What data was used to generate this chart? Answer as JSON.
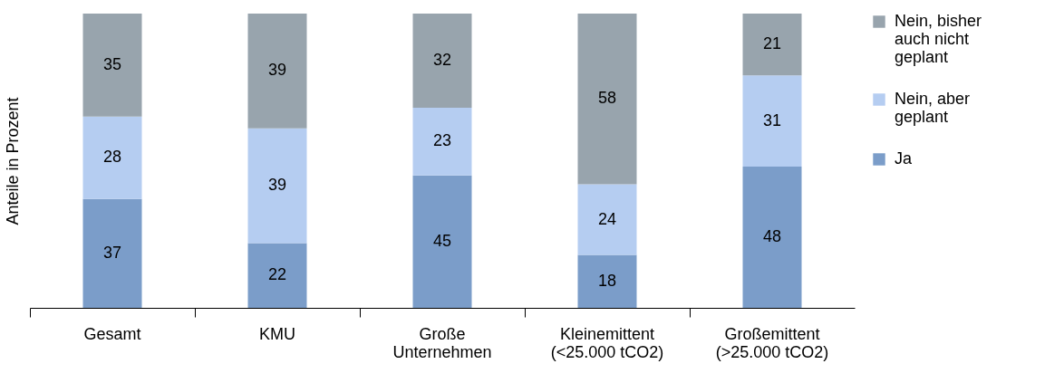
{
  "chart_data": {
    "type": "bar",
    "stacked": true,
    "ylabel": "Anteile in Prozent",
    "categories": [
      "Gesamt",
      "KMU",
      "Große Unternehmen",
      "Kleinemittent (<25.000 tCO2)",
      "Großemittent (>25.000 tCO2)"
    ],
    "series": [
      {
        "name": "Ja",
        "color": "#7b9dc9",
        "values": [
          37,
          22,
          45,
          18,
          48
        ]
      },
      {
        "name": "Nein, aber geplant",
        "color": "#b5cdf1",
        "values": [
          28,
          39,
          23,
          24,
          31
        ]
      },
      {
        "name": "Nein, bisher auch nicht geplant",
        "color": "#98a4ad",
        "values": [
          35,
          39,
          32,
          58,
          21
        ]
      }
    ],
    "ylim": [
      0,
      100
    ],
    "tick_labels": "x",
    "data_labels": true,
    "legend": "right",
    "grid": false
  }
}
